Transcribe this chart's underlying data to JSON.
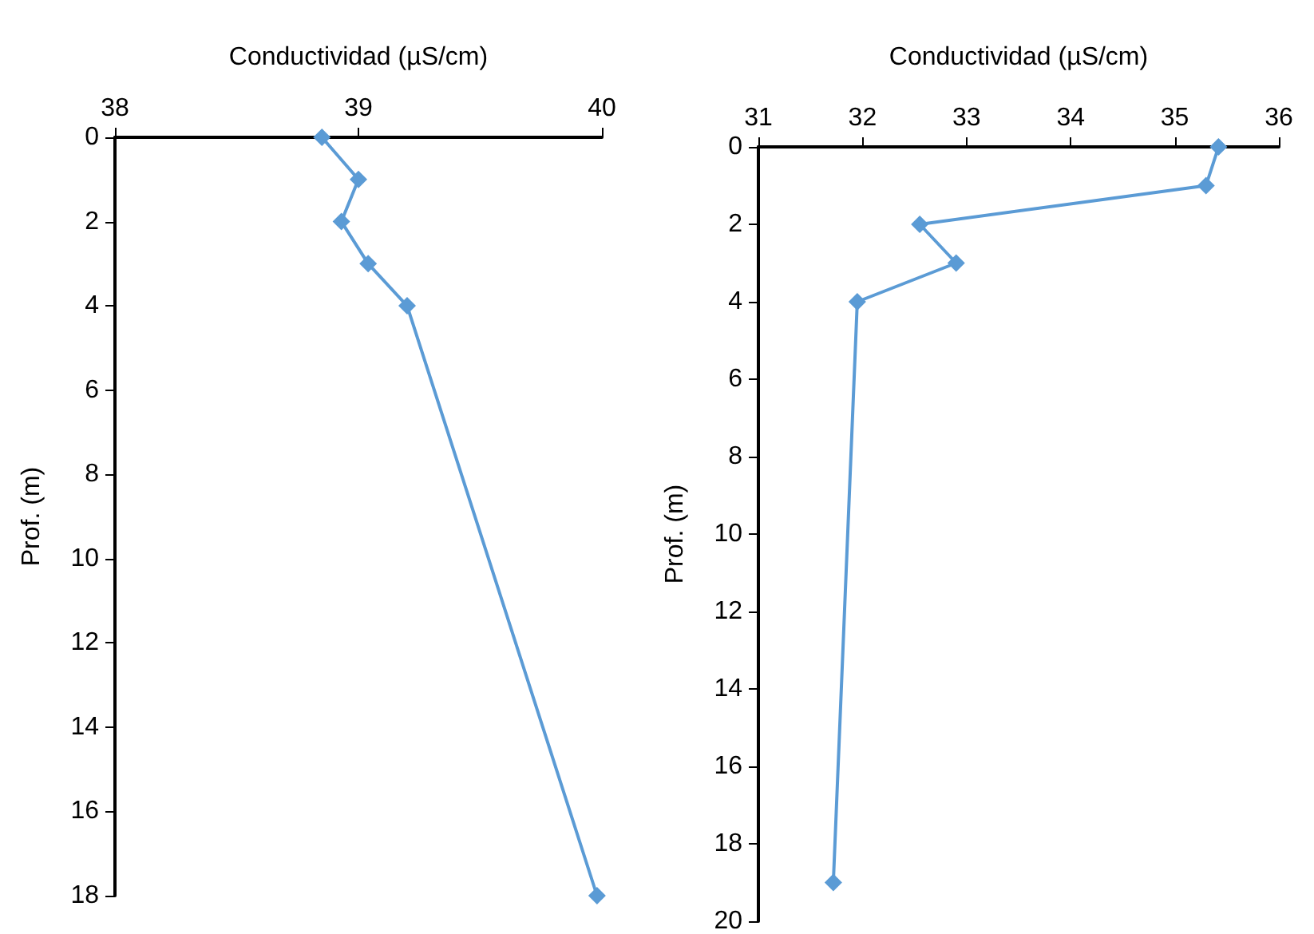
{
  "chart_data": [
    {
      "type": "line",
      "xlabel": "Conductividad (µS/cm)",
      "ylabel": "Prof. (m)",
      "xlim": [
        38,
        40
      ],
      "xticks": [
        38,
        39,
        40
      ],
      "ylim": [
        18,
        0
      ],
      "yticks": [
        0,
        2,
        4,
        6,
        8,
        10,
        12,
        14,
        16,
        18
      ],
      "grid": false,
      "marker": "diamond",
      "line_style": "solid",
      "series": [
        {
          "color": "#5b9bd5",
          "x": [
            38.85,
            39.0,
            38.93,
            39.04,
            39.2,
            39.98
          ],
          "values": [
            0,
            1,
            2,
            3,
            4,
            18
          ]
        }
      ]
    },
    {
      "type": "line",
      "xlabel": "Conductividad (µS/cm)",
      "ylabel": "Prof. (m)",
      "xlim": [
        31,
        36
      ],
      "xticks": [
        31,
        32,
        33,
        34,
        35,
        36
      ],
      "ylim": [
        20,
        0
      ],
      "yticks": [
        0,
        2,
        4,
        6,
        8,
        10,
        12,
        14,
        16,
        18,
        20
      ],
      "grid": false,
      "marker": "diamond",
      "line_style": "solid",
      "series": [
        {
          "color": "#5b9bd5",
          "x": [
            35.42,
            35.3,
            32.55,
            32.9,
            31.95,
            31.72
          ],
          "values": [
            0,
            1,
            2,
            3,
            4,
            19
          ]
        }
      ]
    }
  ]
}
